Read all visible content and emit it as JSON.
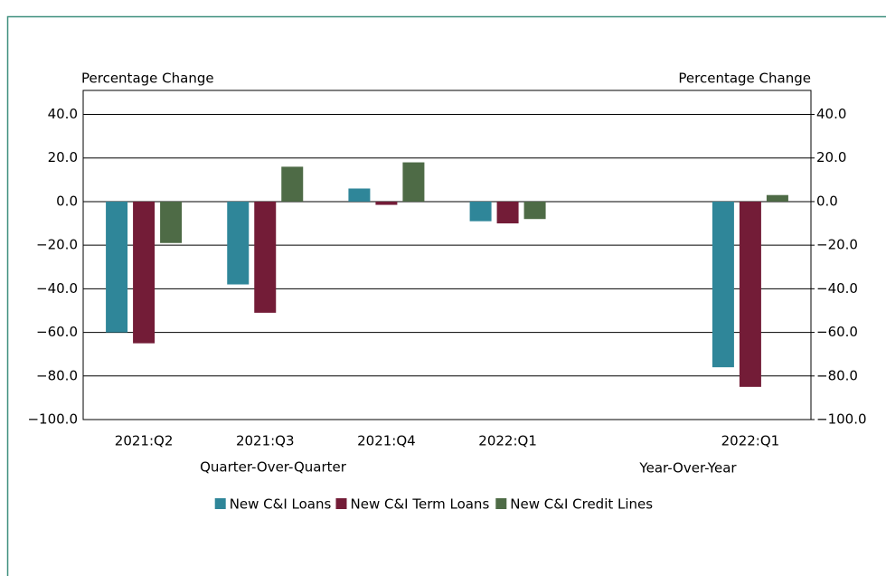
{
  "chart_data": {
    "type": "bar",
    "y_label": "Percentage Change",
    "y2_label": "Percentage Change",
    "annotations": [
      "Quarter-Over-Quarter",
      "Year-Over-Year"
    ],
    "categories": [
      "2021:Q2",
      "2021:Q3",
      "2021:Q4",
      "2022:Q1",
      null,
      "2022:Q1"
    ],
    "series": [
      {
        "name": "New C&I Loans",
        "color": "#2f8699",
        "values": [
          -60,
          -38,
          6,
          -9,
          null,
          -76
        ]
      },
      {
        "name": "New C&I Term Loans",
        "color": "#731c37",
        "values": [
          -65,
          -51,
          -1.5,
          -10,
          null,
          -85
        ]
      },
      {
        "name": "New C&I Credit Lines",
        "color": "#4e6b46",
        "values": [
          -19,
          16,
          18,
          -8,
          null,
          3
        ]
      }
    ],
    "ylim": [
      -100,
      51
    ],
    "yticks": [
      {
        "value": -100,
        "label": "−100.0"
      },
      {
        "value": -80,
        "label": "−80.0"
      },
      {
        "value": -60,
        "label": "−60.0"
      },
      {
        "value": -40,
        "label": "−40.0"
      },
      {
        "value": -20,
        "label": "−20.0"
      },
      {
        "value": 0,
        "label": "0.0"
      },
      {
        "value": 20,
        "label": "20.0"
      },
      {
        "value": 40,
        "label": "40.0"
      }
    ],
    "y2lim": [
      -100,
      51
    ],
    "y2ticks": [
      {
        "value": -100,
        "label": "−100.0"
      },
      {
        "value": -80,
        "label": "−80.0"
      },
      {
        "value": -60,
        "label": "−60.0"
      },
      {
        "value": -40,
        "label": "−40.0"
      },
      {
        "value": -20,
        "label": "−20.0"
      },
      {
        "value": 0,
        "label": "0.0"
      },
      {
        "value": 20,
        "label": "20.0"
      },
      {
        "value": 40,
        "label": "40.0"
      }
    ],
    "grid": true,
    "legend": "bottom"
  }
}
